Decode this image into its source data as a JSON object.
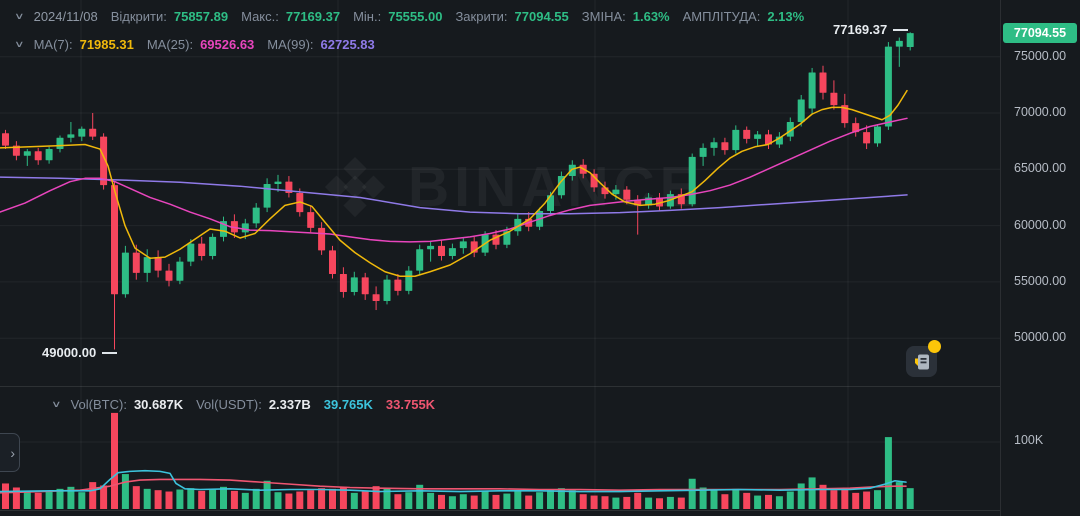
{
  "header": {
    "date": "2024/11/08",
    "fields": [
      {
        "label": "Відкрити:",
        "value": "75857.89"
      },
      {
        "label": "Макс.:",
        "value": "77169.37"
      },
      {
        "label": "Мін.:",
        "value": "75555.00"
      },
      {
        "label": "Закрити:",
        "value": "77094.55"
      },
      {
        "label": "ЗМІНА:",
        "value": "1.63%"
      },
      {
        "label": "АМПЛІТУДА:",
        "value": "2.13%"
      }
    ]
  },
  "ma_legend": [
    {
      "label": "MA(7):",
      "value": "71985.31"
    },
    {
      "label": "MA(25):",
      "value": "69526.63"
    },
    {
      "label": "MA(99):",
      "value": "62725.83"
    }
  ],
  "volume_legend": {
    "label_btc": "Vol(BTC):",
    "value_btc": "30.687K",
    "label_usdt": "Vol(USDT):",
    "value_usdt": "2.337B",
    "ma1_value": "39.765K",
    "ma2_value": "33.755K"
  },
  "price_axis": {
    "last_price": "77094.55",
    "ticks": [
      "75000.00",
      "70000.00",
      "65000.00",
      "60000.00",
      "55000.00",
      "50000.00"
    ]
  },
  "volume_axis": {
    "tick": "100K"
  },
  "annotations": {
    "high_label": "77169.37",
    "low_label": "49000.00"
  },
  "watermark": "BINANCE",
  "colors": {
    "bg": "#161a1e",
    "green": "#2ebd85",
    "red": "#f6465d",
    "yellow": "#f0b90b",
    "pink": "#e845bd",
    "purple": "#8f7ae8",
    "cyan": "#3cc3dc",
    "rose": "#ef5671",
    "label_grey": "#848e9c",
    "axis_text": "#b7bdc6",
    "grid": "rgba(255,255,255,0.055)",
    "separator": "rgba(255,255,255,0.1)",
    "badge_bg": "#2ebd85",
    "icon_yellow": "#fcc509"
  },
  "chart_data": {
    "type": "candlestick+volume",
    "title": "BTC/USDT daily candles, last candle 2024/11/08",
    "last_candle": {
      "open": 75857.89,
      "high": 77169.37,
      "low": 75555.0,
      "close": 77094.55,
      "change_pct": 1.63,
      "amplitude_pct": 2.13
    },
    "ma_values": {
      "ma7": 71985.31,
      "ma25": 69526.63,
      "ma99": 62725.83
    },
    "volume_values": {
      "btc": "30.687K",
      "usdt": "2.337B",
      "vol_ma1": "39.765K",
      "vol_ma2": "33.755K"
    },
    "y_ticks": [
      75000,
      70000,
      65000,
      60000,
      55000,
      50000
    ],
    "volume_axis_tick_k": 100,
    "price_low_annotation": 49000.0,
    "price_high_annotation": 77169.37,
    "candles_format": [
      "open",
      "high",
      "low",
      "close",
      "volume_K_BTC"
    ],
    "candles": [
      [
        68200,
        68500,
        66800,
        67100,
        38
      ],
      [
        67100,
        67500,
        65800,
        66200,
        32
      ],
      [
        66200,
        66800,
        65300,
        66600,
        27
      ],
      [
        66600,
        66900,
        65400,
        65800,
        24
      ],
      [
        65800,
        67000,
        65500,
        66800,
        26
      ],
      [
        66800,
        68000,
        66500,
        67800,
        30
      ],
      [
        67800,
        69200,
        67400,
        68100,
        33
      ],
      [
        67900,
        68800,
        67500,
        68600,
        25
      ],
      [
        68600,
        70000,
        67600,
        67900,
        40
      ],
      [
        67900,
        68200,
        63200,
        63600,
        35
      ],
      [
        63600,
        63900,
        49000,
        53900,
        143
      ],
      [
        53900,
        58200,
        53600,
        57600,
        52
      ],
      [
        57600,
        58300,
        55200,
        55800,
        34
      ],
      [
        55800,
        57900,
        55000,
        57200,
        30
      ],
      [
        57200,
        57800,
        55400,
        56000,
        28
      ],
      [
        56000,
        56600,
        54600,
        55100,
        26
      ],
      [
        55100,
        57200,
        54800,
        56800,
        29
      ],
      [
        56800,
        58800,
        56400,
        58400,
        31
      ],
      [
        58400,
        59000,
        56900,
        57300,
        27
      ],
      [
        57300,
        59300,
        57000,
        59000,
        29
      ],
      [
        59000,
        60800,
        58600,
        60400,
        33
      ],
      [
        60400,
        61000,
        58900,
        59400,
        27
      ],
      [
        59400,
        60600,
        58800,
        60200,
        24
      ],
      [
        60200,
        62000,
        59800,
        61600,
        30
      ],
      [
        61600,
        64200,
        61200,
        63700,
        42
      ],
      [
        63700,
        64500,
        63000,
        63900,
        25
      ],
      [
        63900,
        64400,
        62500,
        62900,
        23
      ],
      [
        62900,
        63300,
        60800,
        61200,
        26
      ],
      [
        61200,
        61800,
        59400,
        59800,
        28
      ],
      [
        59800,
        60300,
        57400,
        57800,
        31
      ],
      [
        57800,
        58200,
        55300,
        55700,
        30
      ],
      [
        55700,
        56300,
        53600,
        54100,
        33
      ],
      [
        54100,
        55900,
        53800,
        55400,
        24
      ],
      [
        55400,
        55800,
        53400,
        53900,
        26
      ],
      [
        53900,
        54600,
        52500,
        53300,
        34
      ],
      [
        53300,
        55600,
        53000,
        55200,
        30
      ],
      [
        55200,
        55700,
        53800,
        54200,
        22
      ],
      [
        54200,
        56400,
        53900,
        56000,
        25
      ],
      [
        56000,
        58300,
        55600,
        57900,
        36
      ],
      [
        57900,
        58600,
        56800,
        58200,
        24
      ],
      [
        58200,
        58700,
        56900,
        57300,
        21
      ],
      [
        57300,
        58400,
        57000,
        58000,
        19
      ],
      [
        58000,
        58900,
        57500,
        58600,
        22
      ],
      [
        58600,
        59000,
        57200,
        57600,
        20
      ],
      [
        57600,
        59500,
        57300,
        59200,
        27
      ],
      [
        59200,
        59600,
        57900,
        58300,
        21
      ],
      [
        58300,
        59900,
        58000,
        59500,
        23
      ],
      [
        59500,
        61000,
        59100,
        60600,
        26
      ],
      [
        60600,
        61200,
        59500,
        59900,
        20
      ],
      [
        59900,
        61600,
        59600,
        61300,
        25
      ],
      [
        61300,
        63000,
        61000,
        62700,
        29
      ],
      [
        62700,
        64800,
        62400,
        64400,
        31
      ],
      [
        64400,
        65800,
        64000,
        65400,
        28
      ],
      [
        65400,
        65900,
        64200,
        64600,
        22
      ],
      [
        64600,
        65000,
        63000,
        63400,
        20
      ],
      [
        63400,
        63900,
        62400,
        62800,
        19
      ],
      [
        62800,
        63600,
        62300,
        63200,
        17
      ],
      [
        63200,
        63500,
        61900,
        62300,
        18
      ],
      [
        62300,
        62700,
        59200,
        61800,
        24
      ],
      [
        61800,
        62900,
        61500,
        62500,
        17
      ],
      [
        62500,
        62900,
        61300,
        61700,
        16
      ],
      [
        61700,
        63100,
        61500,
        62800,
        18
      ],
      [
        62800,
        63300,
        61500,
        61900,
        17
      ],
      [
        61900,
        66400,
        61700,
        66100,
        45
      ],
      [
        66100,
        67300,
        65300,
        66900,
        32
      ],
      [
        66900,
        67800,
        66200,
        67400,
        28
      ],
      [
        67400,
        67800,
        66300,
        66700,
        22
      ],
      [
        66700,
        68900,
        66400,
        68500,
        30
      ],
      [
        68500,
        68800,
        67300,
        67700,
        24
      ],
      [
        67700,
        68400,
        67000,
        68100,
        20
      ],
      [
        68100,
        68500,
        66800,
        67200,
        21
      ],
      [
        67200,
        68300,
        66900,
        67900,
        19
      ],
      [
        67900,
        69600,
        67500,
        69200,
        26
      ],
      [
        69200,
        71600,
        68800,
        71200,
        38
      ],
      [
        70400,
        74000,
        69900,
        73600,
        47
      ],
      [
        73600,
        74200,
        71200,
        71800,
        36
      ],
      [
        71800,
        72900,
        70300,
        70700,
        28
      ],
      [
        70700,
        71700,
        68700,
        69100,
        30
      ],
      [
        69100,
        69600,
        67900,
        68300,
        24
      ],
      [
        68300,
        68900,
        66800,
        67300,
        26
      ],
      [
        67300,
        69000,
        67000,
        68800,
        28
      ],
      [
        68800,
        76300,
        68500,
        75900,
        107
      ],
      [
        75900,
        76700,
        74100,
        76400,
        40
      ],
      [
        75857.89,
        77169.37,
        75555.0,
        77094.55,
        31
      ]
    ],
    "ma7_points": [
      [
        0,
        66900
      ],
      [
        30,
        67000
      ],
      [
        60,
        67100
      ],
      [
        85,
        67200
      ],
      [
        100,
        66800
      ],
      [
        108,
        65300
      ],
      [
        115,
        63000
      ],
      [
        125,
        60000
      ],
      [
        135,
        58000
      ],
      [
        150,
        57100
      ],
      [
        165,
        57200
      ],
      [
        180,
        57900
      ],
      [
        195,
        58800
      ],
      [
        210,
        59700
      ],
      [
        225,
        59500
      ],
      [
        240,
        58900
      ],
      [
        255,
        59300
      ],
      [
        270,
        60600
      ],
      [
        285,
        61800
      ],
      [
        300,
        62100
      ],
      [
        312,
        61700
      ],
      [
        325,
        60300
      ],
      [
        340,
        58700
      ],
      [
        355,
        57600
      ],
      [
        370,
        56700
      ],
      [
        385,
        55900
      ],
      [
        400,
        55500
      ],
      [
        415,
        55500
      ],
      [
        430,
        55900
      ],
      [
        450,
        56500
      ],
      [
        470,
        57500
      ],
      [
        490,
        58700
      ],
      [
        510,
        59500
      ],
      [
        530,
        60600
      ],
      [
        545,
        62000
      ],
      [
        560,
        63800
      ],
      [
        572,
        65000
      ],
      [
        580,
        65200
      ],
      [
        590,
        64700
      ],
      [
        600,
        63800
      ],
      [
        612,
        62800
      ],
      [
        625,
        62100
      ],
      [
        640,
        61800
      ],
      [
        655,
        61900
      ],
      [
        668,
        62200
      ],
      [
        680,
        62600
      ],
      [
        692,
        63000
      ],
      [
        705,
        64000
      ],
      [
        718,
        65100
      ],
      [
        730,
        66000
      ],
      [
        742,
        66600
      ],
      [
        755,
        67000
      ],
      [
        768,
        67200
      ],
      [
        780,
        67800
      ],
      [
        790,
        68400
      ],
      [
        800,
        69000
      ],
      [
        812,
        69900
      ],
      [
        822,
        70300
      ],
      [
        832,
        70500
      ],
      [
        842,
        70500
      ],
      [
        852,
        70300
      ],
      [
        862,
        70000
      ],
      [
        872,
        69700
      ],
      [
        882,
        69400
      ],
      [
        890,
        69800
      ],
      [
        898,
        70700
      ],
      [
        907,
        71985
      ]
    ],
    "ma25_points": [
      [
        0,
        61200
      ],
      [
        25,
        62000
      ],
      [
        50,
        63100
      ],
      [
        70,
        63900
      ],
      [
        85,
        64200
      ],
      [
        100,
        64200
      ],
      [
        115,
        63900
      ],
      [
        130,
        63300
      ],
      [
        150,
        62500
      ],
      [
        170,
        61900
      ],
      [
        190,
        61200
      ],
      [
        210,
        60600
      ],
      [
        230,
        59900
      ],
      [
        250,
        59600
      ],
      [
        270,
        59550
      ],
      [
        290,
        59450
      ],
      [
        310,
        59350
      ],
      [
        330,
        59250
      ],
      [
        350,
        59000
      ],
      [
        370,
        58750
      ],
      [
        390,
        58600
      ],
      [
        410,
        58550
      ],
      [
        430,
        58600
      ],
      [
        450,
        58800
      ],
      [
        470,
        59000
      ],
      [
        490,
        59300
      ],
      [
        510,
        59700
      ],
      [
        530,
        60300
      ],
      [
        550,
        60900
      ],
      [
        570,
        61400
      ],
      [
        590,
        61800
      ],
      [
        610,
        62000
      ],
      [
        630,
        62200
      ],
      [
        650,
        62350
      ],
      [
        670,
        62500
      ],
      [
        690,
        62750
      ],
      [
        710,
        63100
      ],
      [
        730,
        63600
      ],
      [
        750,
        64300
      ],
      [
        770,
        65100
      ],
      [
        790,
        65900
      ],
      [
        810,
        66700
      ],
      [
        830,
        67500
      ],
      [
        850,
        68200
      ],
      [
        870,
        68800
      ],
      [
        890,
        69200
      ],
      [
        907,
        69527
      ]
    ],
    "ma99_points": [
      [
        0,
        64300
      ],
      [
        60,
        64200
      ],
      [
        120,
        64050
      ],
      [
        180,
        63850
      ],
      [
        240,
        63500
      ],
      [
        300,
        63000
      ],
      [
        360,
        62500
      ],
      [
        420,
        61600
      ],
      [
        470,
        61200
      ],
      [
        520,
        61050
      ],
      [
        570,
        61050
      ],
      [
        620,
        61150
      ],
      [
        670,
        61350
      ],
      [
        720,
        61600
      ],
      [
        770,
        61900
      ],
      [
        820,
        62200
      ],
      [
        870,
        62500
      ],
      [
        907,
        62726
      ]
    ],
    "vol_ma1_points_K": [
      [
        0,
        26
      ],
      [
        50,
        27
      ],
      [
        90,
        27
      ],
      [
        100,
        30
      ],
      [
        110,
        44
      ],
      [
        118,
        54
      ],
      [
        130,
        56
      ],
      [
        145,
        57
      ],
      [
        160,
        56
      ],
      [
        170,
        53
      ],
      [
        176,
        38
      ],
      [
        185,
        30
      ],
      [
        200,
        29
      ],
      [
        230,
        30
      ],
      [
        260,
        28
      ],
      [
        290,
        29
      ],
      [
        320,
        29
      ],
      [
        350,
        28
      ],
      [
        380,
        26
      ],
      [
        420,
        27
      ],
      [
        460,
        26
      ],
      [
        500,
        27
      ],
      [
        540,
        27
      ],
      [
        580,
        26
      ],
      [
        620,
        26
      ],
      [
        660,
        27
      ],
      [
        700,
        28
      ],
      [
        740,
        29
      ],
      [
        780,
        28
      ],
      [
        820,
        29
      ],
      [
        850,
        29
      ],
      [
        870,
        31
      ],
      [
        885,
        37
      ],
      [
        895,
        42
      ],
      [
        906,
        40
      ]
    ],
    "vol_ma2_points_K": [
      [
        0,
        24
      ],
      [
        40,
        26
      ],
      [
        80,
        28
      ],
      [
        110,
        34
      ],
      [
        125,
        40
      ],
      [
        140,
        43
      ],
      [
        160,
        44
      ],
      [
        200,
        44
      ],
      [
        230,
        43
      ],
      [
        260,
        40
      ],
      [
        290,
        37
      ],
      [
        320,
        34
      ],
      [
        350,
        32
      ],
      [
        380,
        31
      ],
      [
        420,
        30
      ],
      [
        460,
        30
      ],
      [
        500,
        30
      ],
      [
        540,
        29
      ],
      [
        580,
        29
      ],
      [
        620,
        28
      ],
      [
        660,
        29
      ],
      [
        700,
        29
      ],
      [
        740,
        29
      ],
      [
        780,
        29
      ],
      [
        820,
        30
      ],
      [
        850,
        31
      ],
      [
        875,
        33
      ],
      [
        895,
        34
      ],
      [
        906,
        34
      ]
    ]
  }
}
